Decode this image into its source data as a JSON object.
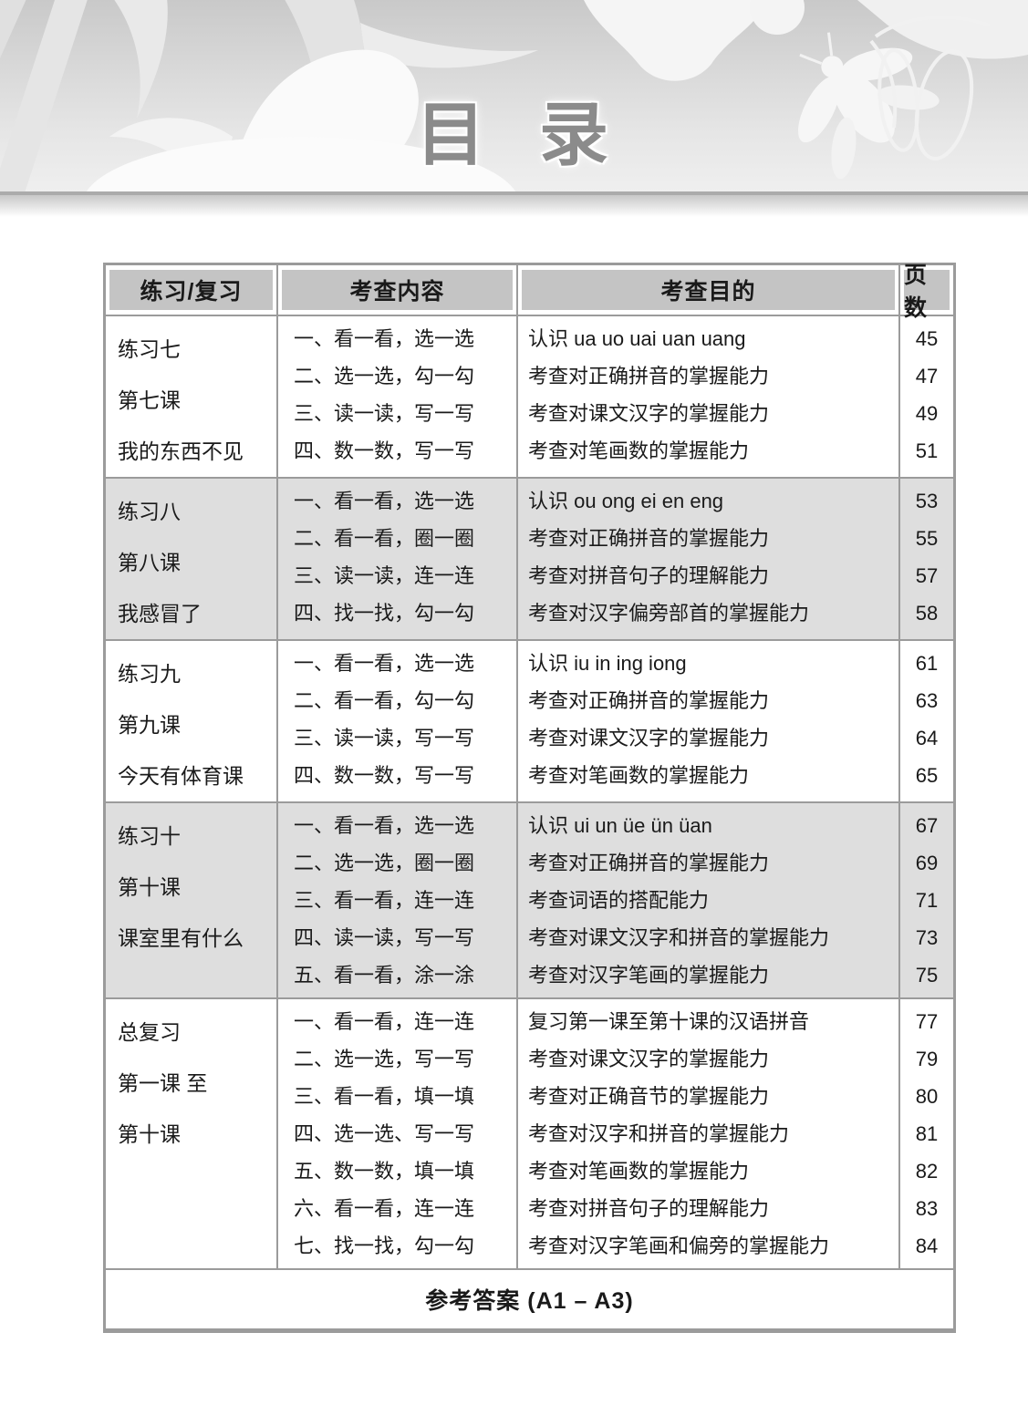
{
  "page": {
    "title": "目 录",
    "footer": "参考答案 (A1 – A3)"
  },
  "icons": [
    "plants-illustration",
    "butterfly-icon",
    "bee-icon",
    "insect-outline-icon"
  ],
  "colors": {
    "band_gray": "#d2d2d2",
    "title_gray": "#8b8b8b",
    "header_cell_gray": "#c4c4c4",
    "row_band_gray": "#dedede",
    "border_gray": "#9b9b9b",
    "text_black": "#1a1a1a"
  },
  "table": {
    "headers": [
      "练习/复习",
      "考查内容",
      "考查目的",
      "页数"
    ],
    "groups": [
      {
        "lesson": [
          "练习七",
          "第七课",
          "我的东西不见"
        ],
        "rows": [
          {
            "content": "一、看一看，选一选",
            "purpose": "认识 ua uo uai uan uang",
            "page": "45"
          },
          {
            "content": "二、选一选，勾一勾",
            "purpose": "考查对正确拼音的掌握能力",
            "page": "47"
          },
          {
            "content": "三、读一读，写一写",
            "purpose": "考查对课文汉字的掌握能力",
            "page": "49"
          },
          {
            "content": "四、数一数，写一写",
            "purpose": "考查对笔画数的掌握能力",
            "page": "51"
          }
        ]
      },
      {
        "lesson": [
          "练习八",
          "第八课",
          "我感冒了"
        ],
        "rows": [
          {
            "content": "一、看一看，选一选",
            "purpose": "认识 ou ong ei en eng",
            "page": "53"
          },
          {
            "content": "二、看一看，圈一圈",
            "purpose": "考查对正确拼音的掌握能力",
            "page": "55"
          },
          {
            "content": "三、读一读，连一连",
            "purpose": "考查对拼音句子的理解能力",
            "page": "57"
          },
          {
            "content": "四、找一找，勾一勾",
            "purpose": "考查对汉字偏旁部首的掌握能力",
            "page": "58"
          }
        ]
      },
      {
        "lesson": [
          "练习九",
          "第九课",
          "今天有体育课"
        ],
        "rows": [
          {
            "content": "一、看一看，选一选",
            "purpose": "认识 iu in ing iong",
            "page": "61"
          },
          {
            "content": "二、看一看，勾一勾",
            "purpose": "考查对正确拼音的掌握能力",
            "page": "63"
          },
          {
            "content": "三、读一读，写一写",
            "purpose": "考查对课文汉字的掌握能力",
            "page": "64"
          },
          {
            "content": "四、数一数，写一写",
            "purpose": "考查对笔画数的掌握能力",
            "page": "65"
          }
        ]
      },
      {
        "lesson": [
          "练习十",
          "第十课",
          "课室里有什么"
        ],
        "rows": [
          {
            "content": "一、看一看，选一选",
            "purpose": "认识 ui un üe ün üan",
            "page": "67"
          },
          {
            "content": "二、选一选，圈一圈",
            "purpose": "考查对正确拼音的掌握能力",
            "page": "69"
          },
          {
            "content": "三、看一看，连一连",
            "purpose": "考查词语的搭配能力",
            "page": "71"
          },
          {
            "content": "四、读一读，写一写",
            "purpose": "考查对课文汉字和拼音的掌握能力",
            "page": "73"
          },
          {
            "content": "五、看一看，涂一涂",
            "purpose": "考查对汉字笔画的掌握能力",
            "page": "75"
          }
        ]
      },
      {
        "lesson": [
          "总复习",
          "第一课 至",
          "第十课"
        ],
        "rows": [
          {
            "content": "一、看一看，连一连",
            "purpose": "复习第一课至第十课的汉语拼音",
            "page": "77"
          },
          {
            "content": "二、选一选，写一写",
            "purpose": "考查对课文汉字的掌握能力",
            "page": "79"
          },
          {
            "content": "三、看一看，填一填",
            "purpose": "考查对正确音节的掌握能力",
            "page": "80"
          },
          {
            "content": "四、选一选、写一写",
            "purpose": "考查对汉字和拼音的掌握能力",
            "page": "81"
          },
          {
            "content": "五、数一数，填一填",
            "purpose": "考查对笔画数的掌握能力",
            "page": "82"
          },
          {
            "content": "六、看一看，连一连",
            "purpose": "考查对拼音句子的理解能力",
            "page": "83"
          },
          {
            "content": "七、找一找，勾一勾",
            "purpose": "考查对汉字笔画和偏旁的掌握能力",
            "page": "84"
          }
        ]
      }
    ]
  }
}
